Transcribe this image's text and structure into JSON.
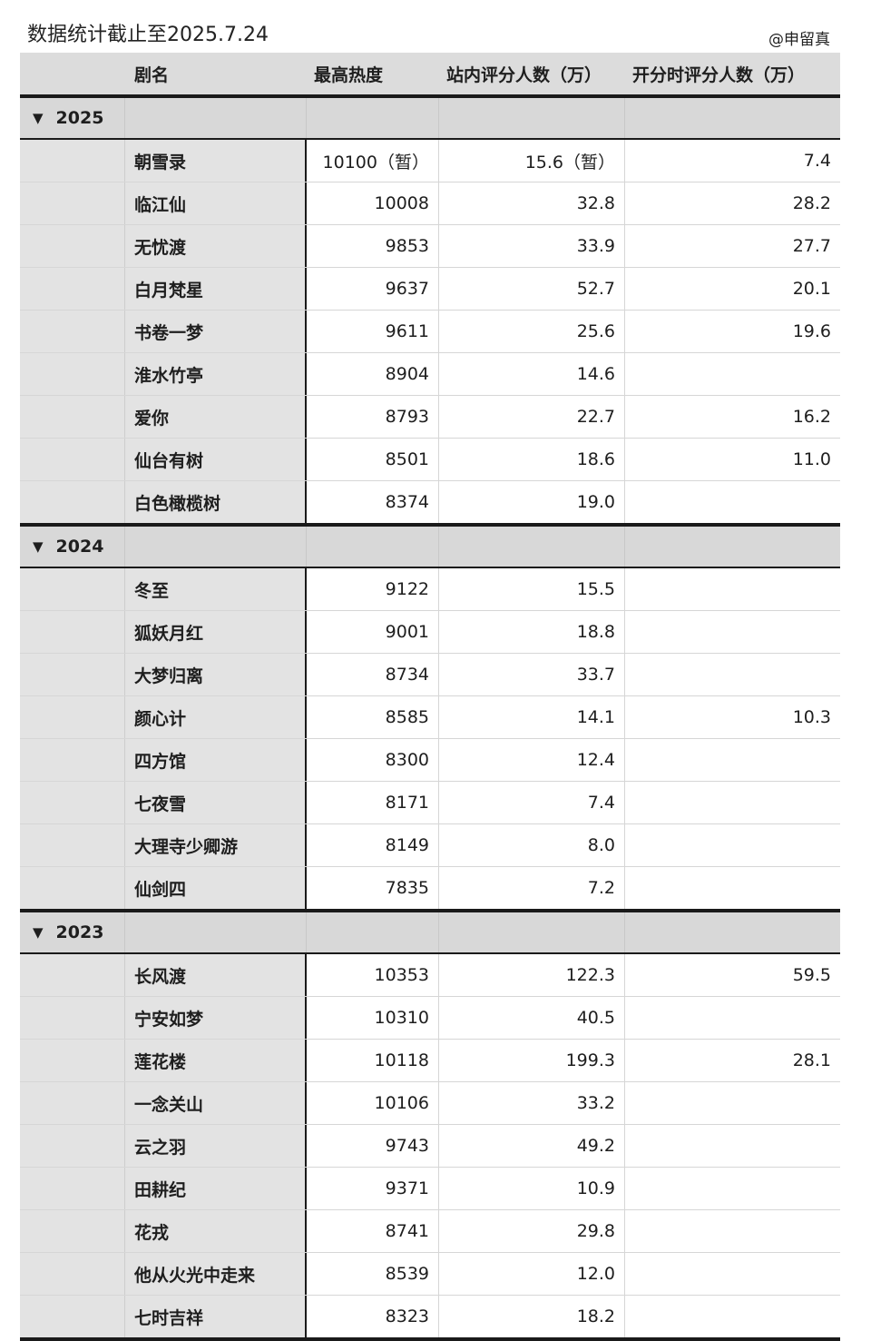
{
  "title": "数据统计截止至2025.7.24",
  "author": "@申留真",
  "headers": [
    "剧名",
    "最高热度",
    "站内评分人数（万）",
    "开分时评分人数（万）"
  ],
  "groups": [
    {
      "year": "2025",
      "rows": [
        [
          "朝雪录",
          "10100（暂）",
          "15.6（暂）",
          "7.4"
        ],
        [
          "临江仙",
          "10008",
          "32.8",
          "28.2"
        ],
        [
          "无忧渡",
          "9853",
          "33.9",
          "27.7"
        ],
        [
          "白月梵星",
          "9637",
          "52.7",
          "20.1"
        ],
        [
          "书卷一梦",
          "9611",
          "25.6",
          "19.6"
        ],
        [
          "淮水竹亭",
          "8904",
          "14.6",
          ""
        ],
        [
          "爱你",
          "8793",
          "22.7",
          "16.2"
        ],
        [
          "仙台有树",
          "8501",
          "18.6",
          "11.0"
        ],
        [
          "白色橄榄树",
          "8374",
          "19.0",
          ""
        ]
      ]
    },
    {
      "year": "2024",
      "rows": [
        [
          "冬至",
          "9122",
          "15.5",
          ""
        ],
        [
          "狐妖月红",
          "9001",
          "18.8",
          ""
        ],
        [
          "大梦归离",
          "8734",
          "33.7",
          ""
        ],
        [
          "颜心计",
          "8585",
          "14.1",
          "10.3"
        ],
        [
          "四方馆",
          "8300",
          "12.4",
          ""
        ],
        [
          "七夜雪",
          "8171",
          "7.4",
          ""
        ],
        [
          "大理寺少卿游",
          "8149",
          "8.0",
          ""
        ],
        [
          "仙剑四",
          "7835",
          "7.2",
          ""
        ]
      ]
    },
    {
      "year": "2023",
      "rows": [
        [
          "长风渡",
          "10353",
          "122.3",
          "59.5"
        ],
        [
          "宁安如梦",
          "10310",
          "40.5",
          ""
        ],
        [
          "莲花楼",
          "10118",
          "199.3",
          "28.1"
        ],
        [
          "一念关山",
          "10106",
          "33.2",
          ""
        ],
        [
          "云之羽",
          "9743",
          "49.2",
          ""
        ],
        [
          "田耕纪",
          "9371",
          "10.9",
          ""
        ],
        [
          "花戎",
          "8741",
          "29.8",
          ""
        ],
        [
          "他从火光中走来",
          "8539",
          "12.0",
          ""
        ],
        [
          "七时吉祥",
          "8323",
          "18.2",
          ""
        ]
      ]
    }
  ]
}
